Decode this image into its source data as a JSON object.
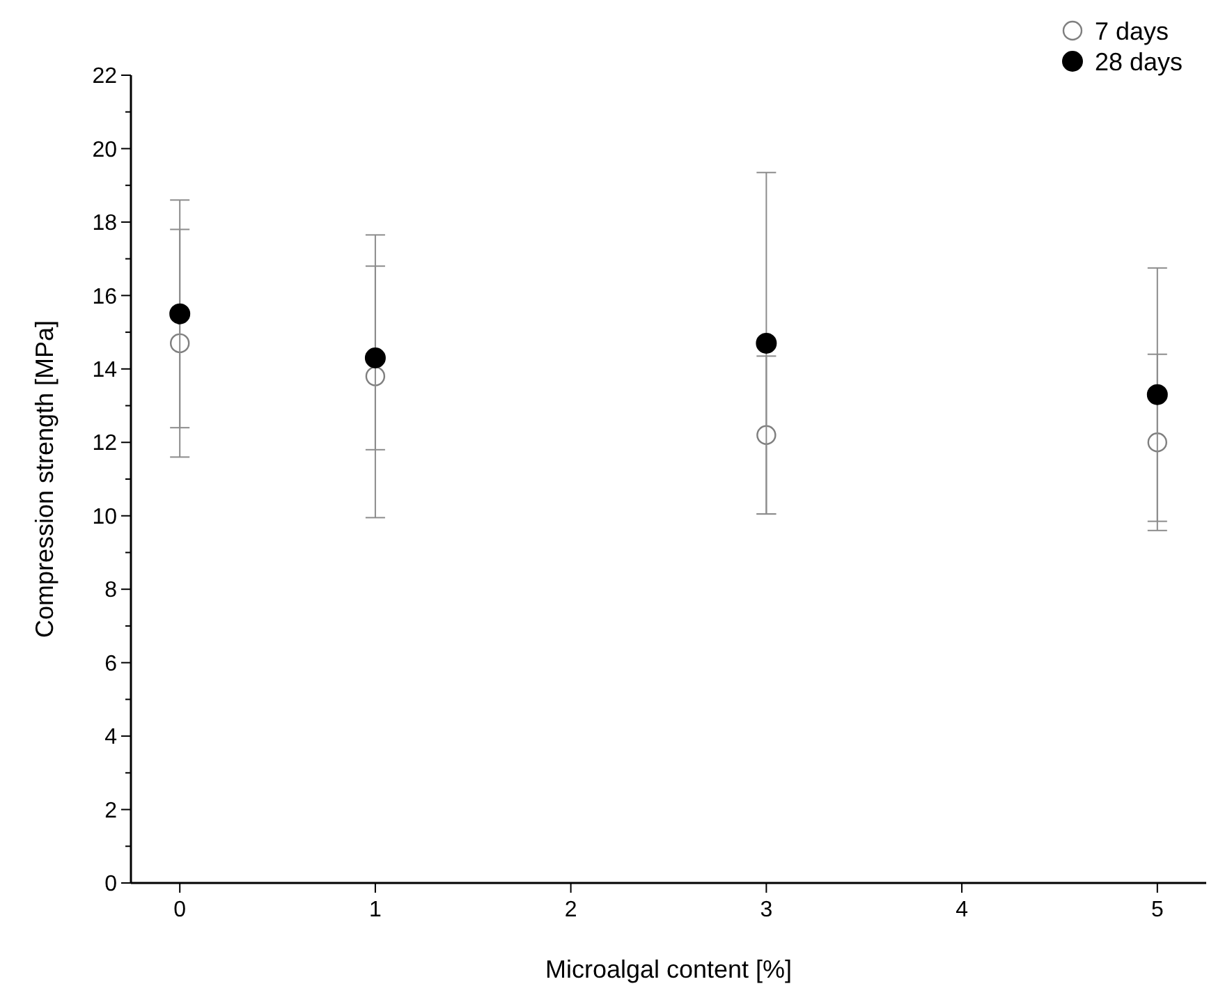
{
  "chart_data": {
    "type": "scatter",
    "xlabel": "Microalgal content [%]",
    "ylabel": "Compression strength [MPa]",
    "x": [
      0,
      1,
      3,
      5
    ],
    "series": [
      {
        "name": "7 days",
        "color": "#7f7f7f",
        "marker": "open circle",
        "values": [
          14.7,
          13.8,
          12.2,
          12.0
        ],
        "errors": [
          3.1,
          3.85,
          2.15,
          2.4
        ]
      },
      {
        "name": "28 days",
        "color": "#000000",
        "marker": "circle",
        "values": [
          15.5,
          14.3,
          14.7,
          13.3
        ],
        "errors": [
          3.1,
          2.5,
          4.65,
          3.45
        ]
      }
    ],
    "xlim": [
      -0.25,
      5.25
    ],
    "xticks": [
      0,
      1,
      2,
      3,
      4,
      5
    ],
    "ylim": [
      0,
      22
    ],
    "yticks": [
      0,
      {
        "value": 1,
        "label": null
      },
      2,
      {
        "value": 3,
        "label": null
      },
      4,
      {
        "value": 5,
        "label": null
      },
      6,
      {
        "value": 7,
        "label": null
      },
      8,
      {
        "value": 9,
        "label": null
      },
      10,
      {
        "value": 11,
        "label": null
      },
      12,
      {
        "value": 13,
        "label": null
      },
      14,
      {
        "value": 15,
        "label": null
      },
      16,
      {
        "value": 17,
        "label": null
      },
      18,
      {
        "value": 19,
        "label": null
      },
      20,
      {
        "value": 21,
        "label": null
      },
      22
    ],
    "grid": false,
    "legend": "top right"
  }
}
